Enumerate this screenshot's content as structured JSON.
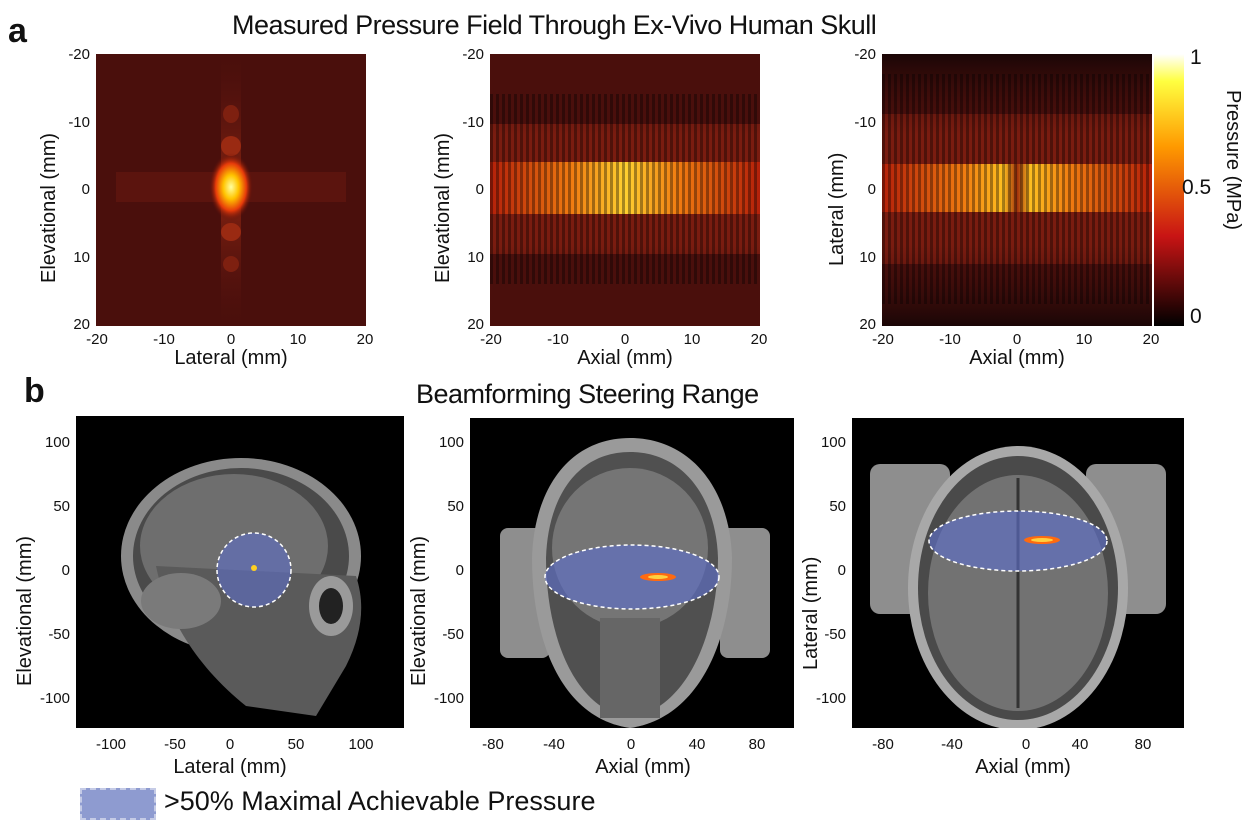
{
  "panel_a": {
    "letter": "a",
    "title": "Measured Pressure Field Through Ex-Vivo Human Skull",
    "plots": [
      {
        "xlabel": "Lateral (mm)",
        "ylabel": "Elevational (mm)",
        "xticks": [
          "-20",
          "-10",
          "0",
          "10",
          "20"
        ],
        "yticks": [
          "-20",
          "-10",
          "0",
          "10",
          "20"
        ]
      },
      {
        "xlabel": "Axial (mm)",
        "ylabel": "Elevational (mm)",
        "xticks": [
          "-20",
          "-10",
          "0",
          "10",
          "20"
        ],
        "yticks": [
          "-20",
          "-10",
          "0",
          "10",
          "20"
        ]
      },
      {
        "xlabel": "Axial (mm)",
        "ylabel": "Lateral (mm)",
        "xticks": [
          "-20",
          "-10",
          "0",
          "10",
          "20"
        ],
        "yticks": [
          "-20",
          "-10",
          "0",
          "10",
          "20"
        ]
      }
    ],
    "colorbar": {
      "label": "Pressure (MPa)",
      "ticks": [
        "1",
        "0.5",
        "0"
      ],
      "colormap": "hot"
    }
  },
  "panel_b": {
    "letter": "b",
    "title": "Beamforming Steering Range",
    "plots": [
      {
        "xlabel": "Lateral (mm)",
        "ylabel": "Elevational (mm)",
        "xticks": [
          "-100",
          "-50",
          "0",
          "50",
          "100"
        ],
        "yticks": [
          "100",
          "50",
          "0",
          "-50",
          "-100"
        ],
        "view": "sagittal"
      },
      {
        "xlabel": "Axial (mm)",
        "ylabel": "Elevational (mm)",
        "xticks": [
          "-80",
          "-40",
          "0",
          "40",
          "80"
        ],
        "yticks": [
          "100",
          "50",
          "0",
          "-50",
          "-100"
        ],
        "view": "coronal"
      },
      {
        "xlabel": "Axial (mm)",
        "ylabel": "Lateral (mm)",
        "xticks": [
          "-80",
          "-40",
          "0",
          "40",
          "80"
        ],
        "yticks": [
          "100",
          "50",
          "0",
          "-50",
          "-100"
        ],
        "view": "axial"
      }
    ],
    "legend": {
      "label": ">50% Maximal Achievable Pressure",
      "color": "#8e9bd0"
    }
  }
}
